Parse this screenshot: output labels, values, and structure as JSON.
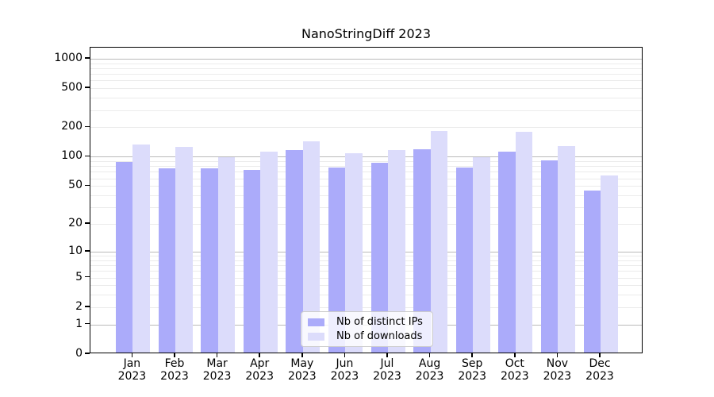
{
  "title": "NanoStringDiff 2023",
  "chart_data": {
    "type": "bar",
    "title": "NanoStringDiff 2023",
    "categories": [
      "Jan",
      "Feb",
      "Mar",
      "Apr",
      "May",
      "Jun",
      "Jul",
      "Aug",
      "Sep",
      "Oct",
      "Nov",
      "Dec"
    ],
    "year_label": "2023",
    "series": [
      {
        "name": "Nb of distinct IPs",
        "color": "#ababfa",
        "values": [
          85,
          73,
          73,
          70,
          113,
          75,
          84,
          115,
          75,
          109,
          88,
          43
        ]
      },
      {
        "name": "Nb of downloads",
        "color": "#dcdcfb",
        "values": [
          129,
          121,
          95,
          108,
          139,
          105,
          113,
          178,
          96,
          175,
          124,
          62
        ]
      }
    ],
    "y_ticks": [
      0,
      1,
      2,
      5,
      10,
      20,
      50,
      100,
      200,
      500,
      1000
    ],
    "y_scale": "log10(1+value)",
    "ylim": [
      0,
      1200
    ],
    "xlabel": "",
    "ylabel": "",
    "grid": "horizontal, minor log lines",
    "legend_position": "lower center"
  }
}
